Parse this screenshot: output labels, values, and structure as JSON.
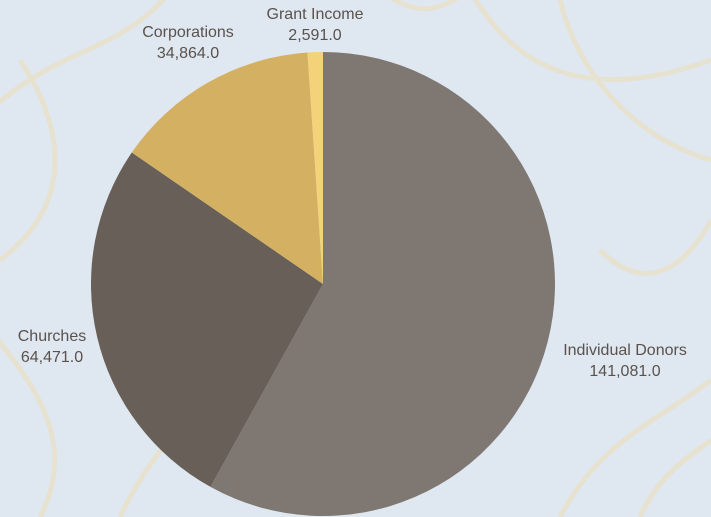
{
  "chart_data": {
    "type": "pie",
    "categories": [
      "Individual Donors",
      "Churches",
      "Corporations",
      "Grant Income"
    ],
    "values": [
      141081,
      64471,
      34864,
      2591
    ],
    "value_labels": [
      "141,081.0",
      "64,471.0",
      "34,864.0",
      "2,591.0"
    ],
    "colors": [
      "#7f7872",
      "#675f58",
      "#d4b062",
      "#f3d27a"
    ]
  }
}
